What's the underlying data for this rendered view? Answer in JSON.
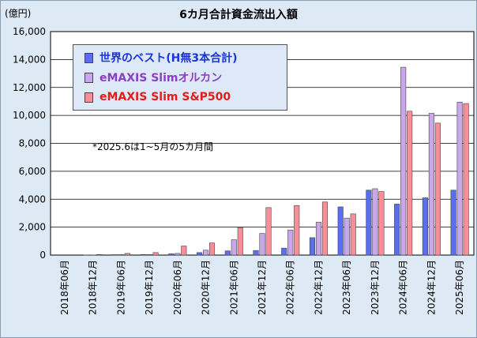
{
  "chart_data": {
    "type": "bar",
    "title": "6カ月合計資金流出入額",
    "unit_label": "(億円)",
    "note": "*2025.6は1~5月の5カ月間",
    "ylim": [
      0,
      16000
    ],
    "yticks": [
      "0",
      "2,000",
      "4,000",
      "6,000",
      "8,000",
      "10,000",
      "12,000",
      "14,000",
      "16,000"
    ],
    "ytick_values": [
      0,
      2000,
      4000,
      6000,
      8000,
      10000,
      12000,
      14000,
      16000
    ],
    "grid": true,
    "legend_position": "top-left",
    "categories": [
      "2018年06月",
      "2018年12月",
      "2019年06月",
      "2019年12月",
      "2020年06月",
      "2020年12月",
      "2021年06月",
      "2021年12月",
      "2022年06月",
      "2022年12月",
      "2023年06月",
      "2023年12月",
      "2024年06月",
      "2024年12月",
      "2025年06月"
    ],
    "series": [
      {
        "name": "世界のベスト(H無3本合計)",
        "color": "#5b6ef0",
        "legend_color": "#1a34d8",
        "values": [
          0,
          10,
          30,
          40,
          90,
          180,
          300,
          330,
          500,
          1250,
          3450,
          4650,
          3650,
          4100,
          4650
        ]
      },
      {
        "name": "eMAXIS Slimオルカン",
        "color": "#c9a7ea",
        "legend_color": "#8a3fc4",
        "values": [
          0,
          10,
          30,
          40,
          120,
          350,
          1100,
          1550,
          1800,
          2350,
          2650,
          4750,
          13450,
          10150,
          10950
        ]
      },
      {
        "name": "eMAXIS Slim S&P500",
        "color": "#f88f98",
        "legend_color": "#e31b1b",
        "values": [
          0,
          40,
          120,
          180,
          650,
          870,
          1950,
          3400,
          3550,
          3800,
          2950,
          4550,
          10300,
          9450,
          10850
        ]
      }
    ]
  }
}
